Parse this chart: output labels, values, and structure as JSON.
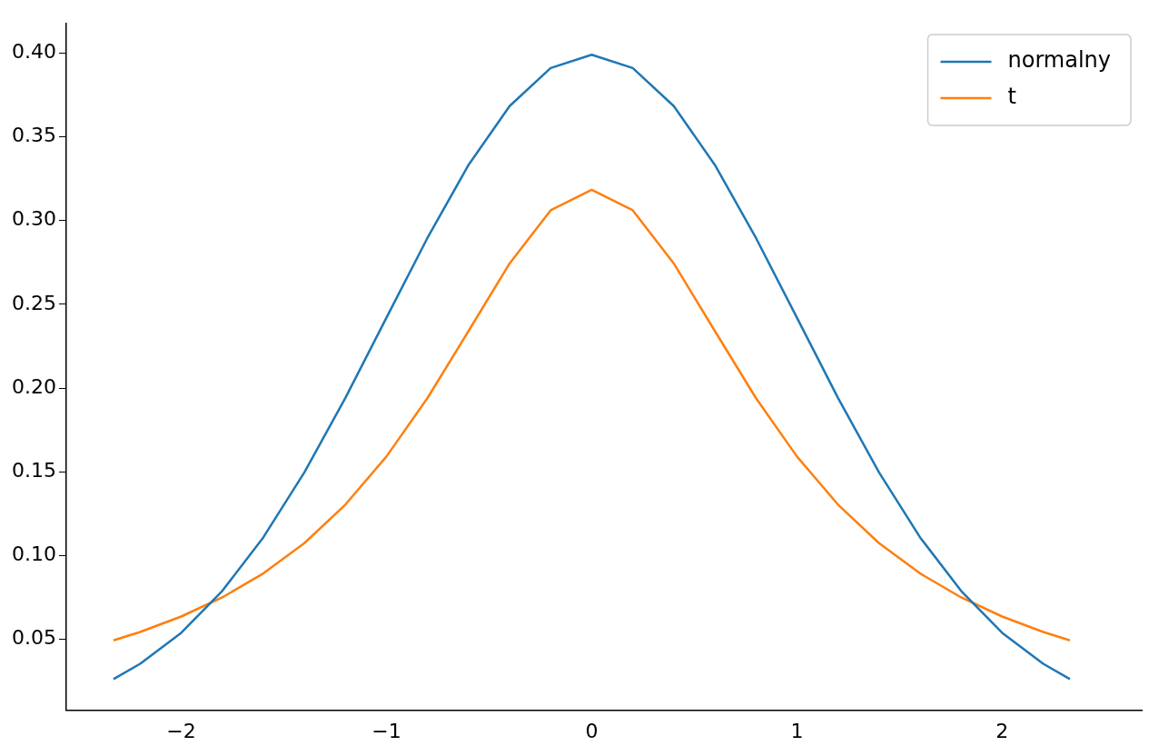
{
  "chart_data": {
    "type": "line",
    "x": [
      -2.33,
      -2.2,
      -2.0,
      -1.8,
      -1.6,
      -1.4,
      -1.2,
      -1.0,
      -0.8,
      -0.6,
      -0.4,
      -0.2,
      0,
      0.2,
      0.4,
      0.6,
      0.8,
      1.0,
      1.2,
      1.4,
      1.6,
      1.8,
      2.0,
      2.2,
      2.33
    ],
    "series": [
      {
        "name": "normalny",
        "color": "#1f77b4",
        "values": [
          0.0264,
          0.0355,
          0.054,
          0.079,
          0.1109,
          0.1497,
          0.1942,
          0.242,
          0.2897,
          0.3332,
          0.3683,
          0.391,
          0.3989,
          0.391,
          0.3683,
          0.3332,
          0.2897,
          0.242,
          0.1942,
          0.1497,
          0.1109,
          0.079,
          0.054,
          0.0355,
          0.0264
        ]
      },
      {
        "name": "t",
        "color": "#ff7f0e",
        "values": [
          0.0495,
          0.0545,
          0.0637,
          0.0751,
          0.0894,
          0.1075,
          0.1305,
          0.1592,
          0.1941,
          0.2341,
          0.2744,
          0.3061,
          0.3183,
          0.3061,
          0.2744,
          0.2341,
          0.1941,
          0.1592,
          0.1305,
          0.1075,
          0.0894,
          0.0751,
          0.0637,
          0.0545,
          0.0495
        ]
      }
    ],
    "xlim": [
      -2.56,
      2.68
    ],
    "ylim": [
      0.0078,
      0.4175
    ],
    "xticks": [
      {
        "value": -2,
        "label": "−2"
      },
      {
        "value": -1,
        "label": "−1"
      },
      0,
      1,
      2
    ],
    "yticks": [
      {
        "value": 0.05,
        "label": "0.05"
      },
      {
        "value": 0.1,
        "label": "0.10"
      },
      {
        "value": 0.15,
        "label": "0.15"
      },
      {
        "value": 0.2,
        "label": "0.20"
      },
      {
        "value": 0.25,
        "label": "0.25"
      },
      {
        "value": 0.3,
        "label": "0.30"
      },
      {
        "value": 0.35,
        "label": "0.35"
      },
      {
        "value": 0.4,
        "label": "0.40"
      }
    ],
    "grid": false,
    "legend": "top right",
    "marker": "none",
    "line_style": "solid"
  }
}
